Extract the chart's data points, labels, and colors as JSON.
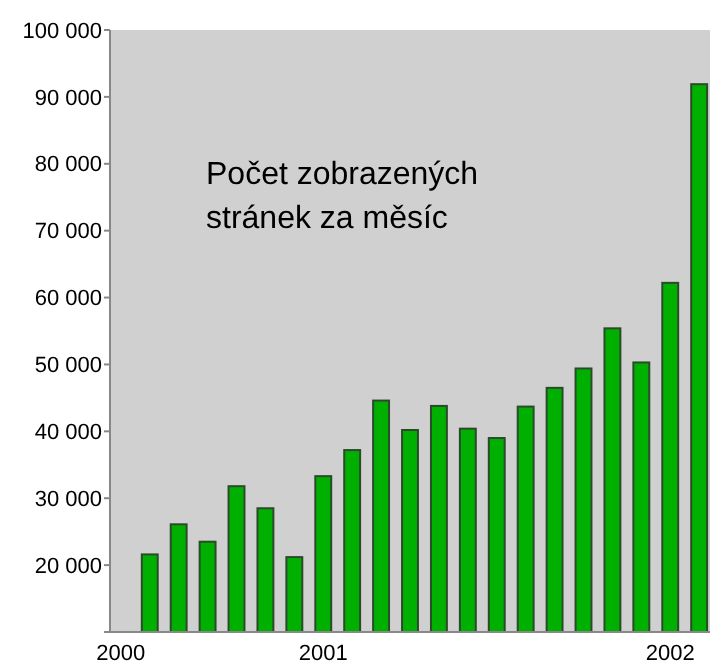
{
  "chart_data": {
    "type": "bar",
    "title": "Počet zobrazených stránek za měsíc",
    "categories": [
      "2000",
      null,
      null,
      null,
      null,
      null,
      null,
      "2001",
      null,
      null,
      null,
      null,
      null,
      null,
      null,
      null,
      null,
      null,
      null,
      "2002",
      null
    ],
    "values": [
      null,
      21600,
      26100,
      23500,
      31800,
      28500,
      21200,
      33300,
      37200,
      44600,
      40200,
      43800,
      40400,
      39000,
      43700,
      46500,
      49400,
      55400,
      50300,
      62200,
      91900
    ],
    "color": "#00b000",
    "ylim": [
      10000,
      100000
    ],
    "yticks": [
      {
        "value": 10000,
        "label": null
      },
      {
        "value": 20000,
        "label": "20 000"
      },
      {
        "value": 30000,
        "label": "30 000"
      },
      {
        "value": 40000,
        "label": "40 000"
      },
      {
        "value": 50000,
        "label": "50 000"
      },
      {
        "value": 60000,
        "label": "60 000"
      },
      {
        "value": 70000,
        "label": "70 000"
      },
      {
        "value": 80000,
        "label": "80 000"
      },
      {
        "value": 90000,
        "label": "90 000"
      },
      {
        "value": 100000,
        "label": "100 000"
      }
    ]
  }
}
